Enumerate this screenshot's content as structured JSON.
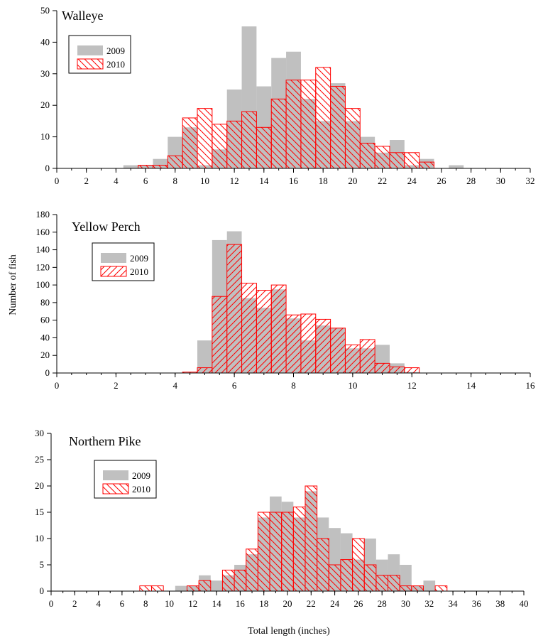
{
  "figure": {
    "ylabel": "Number of fish",
    "xlabel": "Total length (inches)"
  },
  "colors": {
    "bar_2009": "#c0c0c0",
    "bar_2010": "#ff0000"
  },
  "chart_data": [
    {
      "type": "bar",
      "title": "Walleye",
      "xlim": [
        0,
        32
      ],
      "xticks": [
        0,
        2,
        4,
        6,
        8,
        10,
        12,
        14,
        16,
        18,
        20,
        22,
        24,
        26,
        28,
        30,
        32
      ],
      "xminor": 1,
      "ylim": [
        0,
        50
      ],
      "yticks": [
        0,
        10,
        20,
        30,
        40,
        50
      ],
      "hatch": "backslash",
      "x": [
        5,
        6,
        7,
        8,
        9,
        10,
        11,
        12,
        13,
        14,
        15,
        16,
        17,
        18,
        19,
        20,
        21,
        22,
        23,
        24,
        25,
        26,
        27
      ],
      "series": [
        {
          "name": "2009",
          "values": [
            1,
            1,
            3,
            10,
            13,
            1,
            6,
            25,
            45,
            26,
            35,
            37,
            22,
            15,
            27,
            15,
            10,
            5,
            9,
            1,
            3,
            0,
            1
          ]
        },
        {
          "name": "2010",
          "values": [
            0,
            1,
            1,
            4,
            16,
            19,
            14,
            15,
            18,
            13,
            22,
            28,
            28,
            32,
            26,
            19,
            8,
            7,
            5,
            5,
            2,
            0,
            0
          ]
        }
      ]
    },
    {
      "type": "bar",
      "title": "Yellow Perch",
      "xlim": [
        0,
        16
      ],
      "xticks": [
        0,
        2,
        4,
        6,
        8,
        10,
        12,
        14,
        16
      ],
      "xminor": 0.5,
      "ylim": [
        0,
        180
      ],
      "yticks": [
        0,
        20,
        40,
        60,
        80,
        100,
        120,
        140,
        160,
        180
      ],
      "hatch": "slash",
      "x": [
        4.5,
        5.0,
        5.5,
        6.0,
        6.5,
        7.0,
        7.5,
        8.0,
        8.5,
        9.0,
        9.5,
        10.0,
        10.5,
        11.0,
        11.5,
        12.0
      ],
      "series": [
        {
          "name": "2009",
          "values": [
            0,
            37,
            151,
            161,
            85,
            74,
            95,
            62,
            37,
            54,
            51,
            28,
            28,
            32,
            11,
            1
          ]
        },
        {
          "name": "2010",
          "values": [
            1,
            6,
            87,
            146,
            102,
            94,
            100,
            66,
            67,
            61,
            51,
            32,
            38,
            11,
            7,
            6
          ]
        }
      ]
    },
    {
      "type": "bar",
      "title": "Northern Pike",
      "xlim": [
        0,
        40
      ],
      "xticks": [
        0,
        2,
        4,
        6,
        8,
        10,
        12,
        14,
        16,
        18,
        20,
        22,
        24,
        26,
        28,
        30,
        32,
        34,
        36,
        38,
        40
      ],
      "xminor": 1,
      "ylim": [
        0,
        30
      ],
      "yticks": [
        0,
        5,
        10,
        15,
        20,
        25,
        30
      ],
      "hatch": "backslash",
      "x": [
        8,
        9,
        10,
        11,
        12,
        13,
        14,
        15,
        16,
        17,
        18,
        19,
        20,
        21,
        22,
        23,
        24,
        25,
        26,
        27,
        28,
        29,
        30,
        31,
        32,
        33
      ],
      "series": [
        {
          "name": "2009",
          "values": [
            0,
            0,
            0,
            1,
            1,
            3,
            2,
            3,
            5,
            7,
            14,
            18,
            17,
            14,
            19,
            14,
            12,
            11,
            6,
            10,
            6,
            7,
            5,
            1,
            2,
            0
          ]
        },
        {
          "name": "2010",
          "values": [
            1,
            1,
            0,
            0,
            1,
            2,
            0,
            4,
            4,
            8,
            15,
            15,
            15,
            16,
            20,
            10,
            5,
            6,
            10,
            5,
            3,
            3,
            1,
            1,
            0,
            1
          ]
        }
      ]
    }
  ]
}
